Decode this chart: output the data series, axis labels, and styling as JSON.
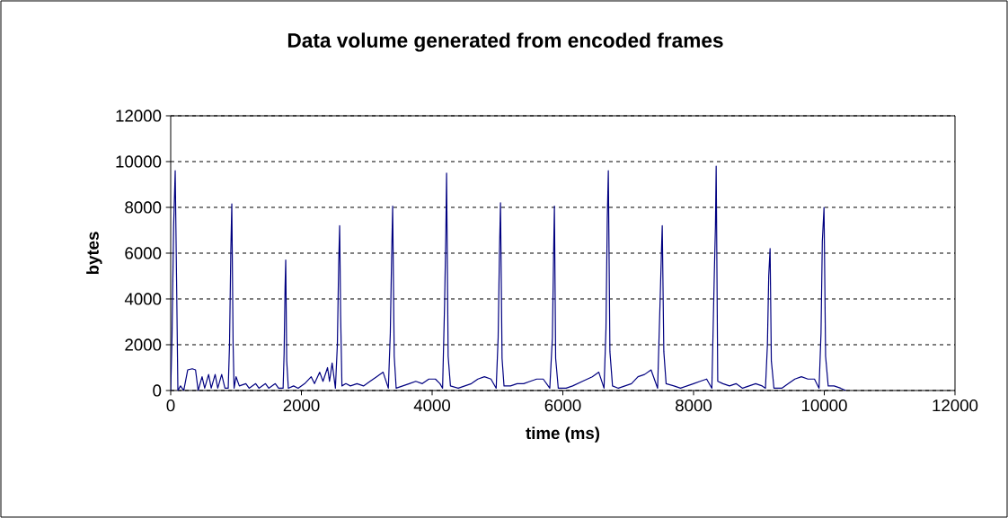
{
  "chart_data": {
    "type": "line",
    "title": "Data volume generated from encoded frames",
    "xlabel": "time (ms)",
    "ylabel": "bytes",
    "xlim": [
      0,
      12000
    ],
    "xticks": [
      0,
      2000,
      4000,
      6000,
      8000,
      10000,
      12000
    ],
    "ylim": [
      0,
      12000
    ],
    "yticks": [
      0,
      2000,
      4000,
      6000,
      8000,
      10000,
      12000
    ],
    "grid": "y",
    "marker": "none",
    "line_style": "solid",
    "series": [
      {
        "color": "#000080",
        "x": [
          0,
          20,
          45,
          69,
          90,
          110,
          150,
          200,
          260,
          330,
          380,
          420,
          480,
          520,
          580,
          620,
          680,
          720,
          780,
          830,
          880,
          900,
          920,
          935,
          955,
          970,
          1000,
          1050,
          1150,
          1200,
          1300,
          1350,
          1450,
          1500,
          1600,
          1650,
          1720,
          1735,
          1750,
          1760,
          1775,
          1800,
          1880,
          1950,
          2050,
          2150,
          2200,
          2280,
          2330,
          2400,
          2430,
          2470,
          2520,
          2550,
          2570,
          2585,
          2600,
          2620,
          2680,
          2750,
          2850,
          2950,
          3050,
          3150,
          3250,
          3330,
          3360,
          3380,
          3396,
          3420,
          3450,
          3550,
          3650,
          3750,
          3850,
          3950,
          4050,
          4120,
          4160,
          4190,
          4210,
          4221,
          4245,
          4280,
          4400,
          4500,
          4600,
          4700,
          4800,
          4900,
          4980,
          5010,
          5030,
          5046,
          5070,
          5100,
          5200,
          5300,
          5400,
          5500,
          5600,
          5700,
          5800,
          5840,
          5860,
          5871,
          5890,
          5930,
          6050,
          6150,
          6300,
          6450,
          6550,
          6630,
          6660,
          6680,
          6696,
          6720,
          6760,
          6850,
          6950,
          7050,
          7150,
          7250,
          7350,
          7450,
          7490,
          7510,
          7521,
          7545,
          7580,
          7700,
          7800,
          7900,
          8000,
          8100,
          8200,
          8280,
          8320,
          8335,
          8346,
          8370,
          8450,
          8550,
          8650,
          8750,
          8850,
          8950,
          9050,
          9100,
          9130,
          9150,
          9171,
          9190,
          9230,
          9350,
          9450,
          9550,
          9650,
          9750,
          9850,
          9920,
          9950,
          9970,
          9996,
          10020,
          10060,
          10150,
          10250,
          10330
        ],
        "values": [
          0,
          2300,
          7200,
          9600,
          4800,
          0,
          200,
          0,
          900,
          950,
          900,
          0,
          600,
          100,
          700,
          100,
          700,
          100,
          700,
          100,
          100,
          2000,
          6100,
          8150,
          2000,
          100,
          600,
          200,
          300,
          100,
          300,
          100,
          300,
          100,
          300,
          100,
          100,
          1600,
          4500,
          5700,
          1300,
          100,
          200,
          100,
          300,
          600,
          300,
          800,
          400,
          1000,
          400,
          1200,
          100,
          2000,
          5500,
          7200,
          3300,
          200,
          300,
          200,
          300,
          200,
          400,
          600,
          800,
          100,
          2500,
          5800,
          8050,
          1500,
          100,
          200,
          300,
          400,
          300,
          500,
          500,
          300,
          100,
          3700,
          6900,
          9500,
          1500,
          200,
          100,
          200,
          300,
          500,
          600,
          500,
          100,
          2300,
          6000,
          8200,
          1400,
          200,
          200,
          300,
          300,
          400,
          500,
          500,
          100,
          2300,
          6200,
          8050,
          1400,
          100,
          100,
          200,
          400,
          600,
          800,
          100,
          2700,
          7500,
          9600,
          1700,
          200,
          100,
          200,
          300,
          600,
          700,
          900,
          100,
          4100,
          6200,
          7200,
          1700,
          300,
          200,
          100,
          200,
          300,
          400,
          500,
          100,
          5400,
          7200,
          9800,
          400,
          300,
          200,
          300,
          100,
          200,
          300,
          200,
          100,
          2000,
          5000,
          6200,
          1300,
          100,
          100,
          300,
          500,
          600,
          500,
          500,
          100,
          2500,
          6500,
          8000,
          1500,
          200,
          200,
          100,
          0
        ]
      }
    ]
  }
}
